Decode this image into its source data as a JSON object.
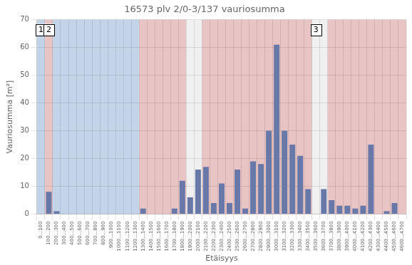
{
  "chart_data": {
    "type": "bar",
    "title": "16573 plv 2/0-3/137 vauriosumma",
    "xlabel": "Etäisyys",
    "ylabel": "Vauriosumma [m²]",
    "categories": [
      "0...100",
      "100...200",
      "200...300",
      "300...400",
      "400...500",
      "500...600",
      "600...700",
      "700...800",
      "800...900",
      "900...1000",
      "1000...1100",
      "1100...1200",
      "1200...1300",
      "1300...1400",
      "1400...1500",
      "1500...1600",
      "1600...1700",
      "1700...1800",
      "1800...1900",
      "1900...2000",
      "2000...2100",
      "2100...2200",
      "2200...2300",
      "2300...2400",
      "2400...2500",
      "2500...2600",
      "2600...2700",
      "2700...2800",
      "2800...2900",
      "2900...3000",
      "3000...3100",
      "3100...3200",
      "3200...3300",
      "3300...3400",
      "3400...3500",
      "3500...3600",
      "3600...3700",
      "3700...3800",
      "3800...3900",
      "3900...4000",
      "4000...4100",
      "4100...4200",
      "4200...4300",
      "4300...4400",
      "4400...4500",
      "4500...4600",
      "4600...4700"
    ],
    "values": [
      0,
      8,
      1,
      0,
      0,
      0,
      0,
      0,
      0,
      0,
      0,
      0,
      0,
      2,
      0,
      0,
      0,
      2,
      12,
      6,
      16,
      17,
      4,
      11,
      4,
      16,
      2,
      19,
      18,
      30,
      61,
      30,
      25,
      21,
      9,
      0,
      9,
      5,
      3,
      3,
      2,
      3,
      25,
      0,
      1,
      4,
      0
    ],
    "color": "#6878a8",
    "ylim": [
      0,
      70
    ],
    "yticks": [
      0,
      10,
      20,
      30,
      40,
      50,
      60,
      70
    ],
    "grid": true,
    "regions": [
      {
        "start": "0...100",
        "end": "0...100",
        "color": "#c4d4e8"
      },
      {
        "start": "100...200",
        "end": "100...200",
        "color": "#e8c4c4"
      },
      {
        "start": "200...300",
        "end": "1200...1300",
        "color": "#c4d4e8"
      },
      {
        "start": "1300...1400",
        "end": "1800...1900",
        "color": "#e8c4c4"
      },
      {
        "start": "1900...2000",
        "end": "2000...2100",
        "color": "#f0f0f0"
      },
      {
        "start": "2100...2200",
        "end": "3400...3500",
        "color": "#e8c4c4"
      },
      {
        "start": "3500...3600",
        "end": "3600...3700",
        "color": "#f0f0f0"
      },
      {
        "start": "3700...3800",
        "end": "4600...4700",
        "color": "#e8c4c4"
      }
    ],
    "annotations": [
      {
        "text": "1",
        "category": "0...100"
      },
      {
        "text": "2",
        "category": "100...200"
      },
      {
        "text": "3",
        "category": "3500...3600"
      }
    ]
  }
}
